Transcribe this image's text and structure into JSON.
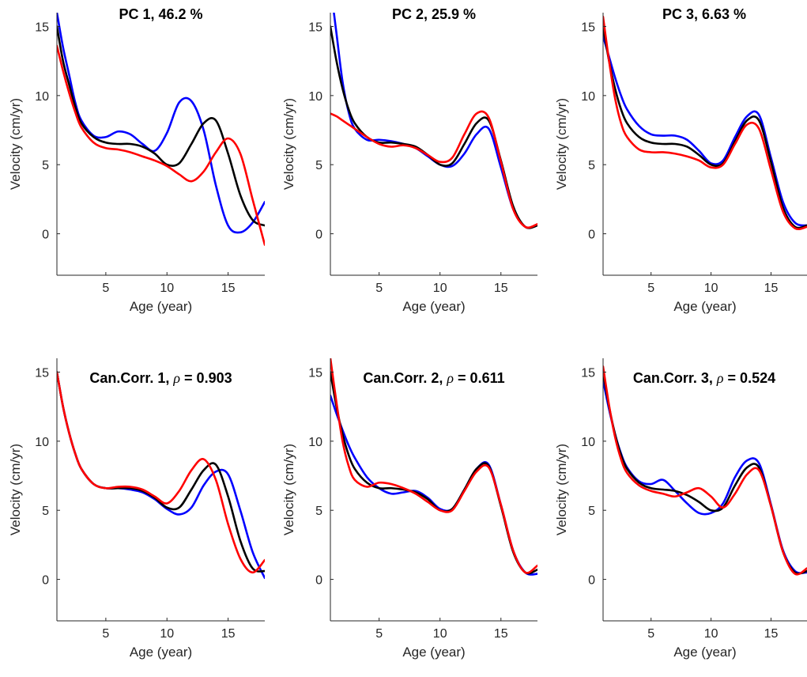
{
  "chart_data": [
    {
      "type": "line",
      "title": "PC 1, 46.2 %",
      "title_rich": false,
      "xlabel": "Age (year)",
      "ylabel": "Velocity (cm/yr)",
      "xlim": [
        1,
        18
      ],
      "ylim": [
        -3,
        16
      ],
      "xticks": [
        5,
        10,
        15
      ],
      "yticks": [
        0,
        5,
        10,
        15
      ],
      "series": [
        {
          "color": "#0000ff",
          "x": [
            1,
            1.5,
            2,
            2.5,
            3,
            4,
            5,
            6,
            7,
            8,
            9,
            10,
            11,
            12,
            13,
            14,
            15,
            16,
            17,
            18
          ],
          "y": [
            16,
            13.5,
            11.5,
            9.5,
            8.2,
            7.1,
            7,
            7.4,
            7.2,
            6.5,
            6,
            7.3,
            9.5,
            9.6,
            7.5,
            3.5,
            0.6,
            0.1,
            0.8,
            2.3
          ]
        },
        {
          "color": "#000000",
          "x": [
            1,
            1.5,
            2,
            2.5,
            3,
            4,
            5,
            6,
            7,
            8,
            9,
            10,
            11,
            12,
            13,
            14,
            15,
            16,
            17,
            18
          ],
          "y": [
            15,
            12.5,
            10.8,
            9.2,
            8,
            7,
            6.6,
            6.5,
            6.5,
            6.3,
            5.8,
            5,
            5.1,
            6.5,
            8,
            8.2,
            5.8,
            2.8,
            1,
            0.6
          ]
        },
        {
          "color": "#ff0000",
          "x": [
            1,
            1.5,
            2,
            2.5,
            3,
            4,
            5,
            6,
            7,
            8,
            9,
            10,
            11,
            12,
            13,
            14,
            15,
            16,
            17,
            18
          ],
          "y": [
            13.6,
            11.8,
            10.2,
            8.8,
            7.7,
            6.6,
            6.2,
            6.1,
            5.9,
            5.6,
            5.3,
            4.9,
            4.3,
            3.8,
            4.5,
            5.9,
            6.9,
            5.8,
            2.5,
            -0.8
          ]
        }
      ]
    },
    {
      "type": "line",
      "title": "PC 2, 25.9 %",
      "title_rich": false,
      "xlabel": "Age (year)",
      "ylabel": "Velocity (cm/yr)",
      "xlim": [
        1,
        18
      ],
      "ylim": [
        -3,
        16
      ],
      "xticks": [
        5,
        10,
        15
      ],
      "yticks": [
        0,
        5,
        10,
        15
      ],
      "series": [
        {
          "color": "#0000ff",
          "x": [
            1,
            1.5,
            2,
            2.5,
            3,
            4,
            5,
            6,
            7,
            8,
            9,
            10,
            11,
            12,
            13,
            14,
            15,
            16,
            17,
            18
          ],
          "y": [
            18,
            14.5,
            11,
            8.8,
            7.6,
            6.8,
            6.8,
            6.7,
            6.5,
            6.2,
            5.6,
            5,
            4.9,
            5.8,
            7.2,
            7.6,
            4.8,
            1.8,
            0.5,
            0.6
          ]
        },
        {
          "color": "#000000",
          "x": [
            1,
            1.5,
            2,
            2.5,
            3,
            4,
            5,
            6,
            7,
            8,
            9,
            10,
            11,
            12,
            13,
            14,
            15,
            16,
            17,
            18
          ],
          "y": [
            15,
            12.5,
            10.5,
            9,
            8,
            7,
            6.6,
            6.6,
            6.5,
            6.3,
            5.7,
            5,
            5.1,
            6.5,
            8,
            8.2,
            5.3,
            2,
            0.5,
            0.6
          ]
        },
        {
          "color": "#ff0000",
          "x": [
            1,
            1.5,
            2,
            2.5,
            3,
            4,
            5,
            6,
            7,
            8,
            9,
            10,
            11,
            12,
            13,
            14,
            15,
            16,
            17,
            18
          ],
          "y": [
            8.7,
            8.5,
            8.2,
            7.9,
            7.6,
            7,
            6.5,
            6.3,
            6.4,
            6.2,
            5.7,
            5.2,
            5.5,
            7.2,
            8.7,
            8.4,
            5.2,
            1.8,
            0.5,
            0.7
          ]
        }
      ]
    },
    {
      "type": "line",
      "title": "PC 3, 6.63 %",
      "title_rich": false,
      "xlabel": "Age (year)",
      "ylabel": "Velocity (cm/yr)",
      "xlim": [
        1,
        18
      ],
      "ylim": [
        -3,
        16
      ],
      "xticks": [
        5,
        10,
        15
      ],
      "yticks": [
        0,
        5,
        10,
        15
      ],
      "series": [
        {
          "color": "#0000ff",
          "x": [
            1,
            1.5,
            2,
            2.5,
            3,
            4,
            5,
            6,
            7,
            8,
            9,
            10,
            11,
            12,
            13,
            14,
            15,
            16,
            17,
            18
          ],
          "y": [
            14.3,
            12.8,
            11.3,
            10,
            9,
            7.8,
            7.2,
            7.1,
            7.1,
            6.8,
            6,
            5.1,
            5.3,
            7,
            8.5,
            8.6,
            5.5,
            2.3,
            0.8,
            0.6
          ]
        },
        {
          "color": "#000000",
          "x": [
            1,
            1.5,
            2,
            2.5,
            3,
            4,
            5,
            6,
            7,
            8,
            9,
            10,
            11,
            12,
            13,
            14,
            15,
            16,
            17,
            18
          ],
          "y": [
            15,
            12.5,
            10.5,
            9,
            8,
            7,
            6.6,
            6.5,
            6.5,
            6.3,
            5.7,
            5,
            5.1,
            6.7,
            8.2,
            8.2,
            5.2,
            1.9,
            0.5,
            0.6
          ]
        },
        {
          "color": "#ff0000",
          "x": [
            1,
            1.5,
            2,
            2.5,
            3,
            4,
            5,
            6,
            7,
            8,
            9,
            10,
            11,
            12,
            13,
            14,
            15,
            16,
            17,
            18
          ],
          "y": [
            15.7,
            12.5,
            9.8,
            8,
            7,
            6.1,
            5.9,
            5.9,
            5.8,
            5.6,
            5.3,
            4.8,
            5,
            6.5,
            7.9,
            7.6,
            4.6,
            1.6,
            0.4,
            0.5
          ]
        }
      ]
    },
    {
      "type": "line",
      "title": "Can.Corr. 1, ρ = 0.903",
      "title_rich": true,
      "title_prefix": "Can.Corr. 1,",
      "title_symbol": "ρ",
      "title_suffix": "= 0.903",
      "xlabel": "Age (year)",
      "ylabel": "Velocity (cm/yr)",
      "xlim": [
        1,
        18
      ],
      "ylim": [
        -3,
        16
      ],
      "xticks": [
        5,
        10,
        15
      ],
      "yticks": [
        0,
        5,
        10,
        15
      ],
      "series": [
        {
          "color": "#0000ff",
          "x": [
            1,
            1.5,
            2,
            2.5,
            3,
            4,
            5,
            6,
            7,
            8,
            9,
            10,
            11,
            12,
            13,
            14,
            15,
            16,
            17,
            18
          ],
          "y": [
            15,
            12.5,
            10.6,
            9.1,
            8,
            6.9,
            6.6,
            6.6,
            6.5,
            6.3,
            5.8,
            5.1,
            4.7,
            5.2,
            6.8,
            7.8,
            7.6,
            5,
            2,
            0.1
          ]
        },
        {
          "color": "#000000",
          "x": [
            1,
            1.5,
            2,
            2.5,
            3,
            4,
            5,
            6,
            7,
            8,
            9,
            10,
            11,
            12,
            13,
            14,
            15,
            16,
            17,
            18
          ],
          "y": [
            15,
            12.5,
            10.6,
            9.1,
            8,
            6.9,
            6.6,
            6.6,
            6.6,
            6.4,
            5.9,
            5.2,
            5.2,
            6.5,
            7.9,
            8.3,
            6,
            2.8,
            0.8,
            0.6
          ]
        },
        {
          "color": "#ff0000",
          "x": [
            1,
            1.5,
            2,
            2.5,
            3,
            4,
            5,
            6,
            7,
            8,
            9,
            10,
            11,
            12,
            13,
            14,
            15,
            16,
            17,
            18
          ],
          "y": [
            15,
            12.5,
            10.6,
            9.1,
            8,
            6.9,
            6.6,
            6.7,
            6.7,
            6.5,
            6,
            5.5,
            6.4,
            7.9,
            8.7,
            7.2,
            4,
            1.5,
            0.5,
            1.4
          ]
        }
      ]
    },
    {
      "type": "line",
      "title": "Can.Corr. 2, ρ = 0.611",
      "title_rich": true,
      "title_prefix": "Can.Corr. 2,",
      "title_symbol": "ρ",
      "title_suffix": "= 0.611",
      "xlabel": "Age (year)",
      "ylabel": "Velocity (cm/yr)",
      "xlim": [
        1,
        18
      ],
      "ylim": [
        -3,
        16
      ],
      "xticks": [
        5,
        10,
        15
      ],
      "yticks": [
        0,
        5,
        10,
        15
      ],
      "series": [
        {
          "color": "#0000ff",
          "x": [
            1,
            1.5,
            2,
            2.5,
            3,
            4,
            5,
            6,
            7,
            8,
            9,
            10,
            11,
            12,
            13,
            14,
            15,
            16,
            17,
            18
          ],
          "y": [
            13.3,
            12,
            10.8,
            9.7,
            8.8,
            7.4,
            6.6,
            6.2,
            6.3,
            6.4,
            5.9,
            5.1,
            5.1,
            6.5,
            8,
            8.3,
            5.4,
            2.1,
            0.5,
            0.4
          ]
        },
        {
          "color": "#000000",
          "x": [
            1,
            1.5,
            2,
            2.5,
            3,
            4,
            5,
            6,
            7,
            8,
            9,
            10,
            11,
            12,
            13,
            14,
            15,
            16,
            17,
            18
          ],
          "y": [
            15,
            12.5,
            10.5,
            9,
            8,
            7,
            6.6,
            6.6,
            6.5,
            6.3,
            5.8,
            5,
            5.1,
            6.5,
            8,
            8.2,
            5.3,
            2,
            0.5,
            0.7
          ]
        },
        {
          "color": "#ff0000",
          "x": [
            1,
            1.5,
            2,
            2.5,
            3,
            4,
            5,
            6,
            7,
            8,
            9,
            10,
            11,
            12,
            13,
            14,
            15,
            16,
            17,
            18
          ],
          "y": [
            16,
            12.8,
            10,
            8.2,
            7.2,
            6.7,
            7,
            6.9,
            6.6,
            6.2,
            5.6,
            5,
            5,
            6.4,
            7.8,
            8.1,
            5.4,
            2.1,
            0.5,
            1
          ]
        }
      ]
    },
    {
      "type": "line",
      "title": "Can.Corr. 3, ρ = 0.524",
      "title_rich": true,
      "title_prefix": "Can.Corr. 3,",
      "title_symbol": "ρ",
      "title_suffix": "= 0.524",
      "xlabel": "Age (year)",
      "ylabel": "Velocity (cm/yr)",
      "xlim": [
        1,
        18
      ],
      "ylim": [
        -3,
        16
      ],
      "xticks": [
        5,
        10,
        15
      ],
      "yticks": [
        0,
        5,
        10,
        15
      ],
      "series": [
        {
          "color": "#0000ff",
          "x": [
            1,
            1.5,
            2,
            2.5,
            3,
            4,
            5,
            6,
            7,
            8,
            9,
            10,
            11,
            12,
            13,
            14,
            15,
            16,
            17,
            18
          ],
          "y": [
            14.4,
            12.3,
            10.5,
            9.1,
            8.1,
            7.1,
            6.9,
            7.2,
            6.4,
            5.5,
            4.8,
            4.8,
            5.5,
            7.4,
            8.6,
            8.4,
            5.4,
            2.1,
            0.6,
            0.5
          ]
        },
        {
          "color": "#000000",
          "x": [
            1,
            1.5,
            2,
            2.5,
            3,
            4,
            5,
            6,
            7,
            8,
            9,
            10,
            11,
            12,
            13,
            14,
            15,
            16,
            17,
            18
          ],
          "y": [
            15,
            12.5,
            10.5,
            9,
            8,
            7,
            6.6,
            6.5,
            6.4,
            6.1,
            5.6,
            5,
            5.2,
            6.8,
            8.1,
            8.1,
            5.3,
            2,
            0.5,
            0.6
          ]
        },
        {
          "color": "#ff0000",
          "x": [
            1,
            1.5,
            2,
            2.5,
            3,
            4,
            5,
            6,
            7,
            8,
            9,
            10,
            11,
            12,
            13,
            14,
            15,
            16,
            17,
            18
          ],
          "y": [
            15.4,
            12.6,
            10.3,
            8.7,
            7.7,
            6.8,
            6.4,
            6.2,
            6,
            6.3,
            6.6,
            6,
            5.2,
            6.2,
            7.6,
            7.9,
            5.3,
            2,
            0.4,
            0.8
          ]
        }
      ]
    }
  ]
}
